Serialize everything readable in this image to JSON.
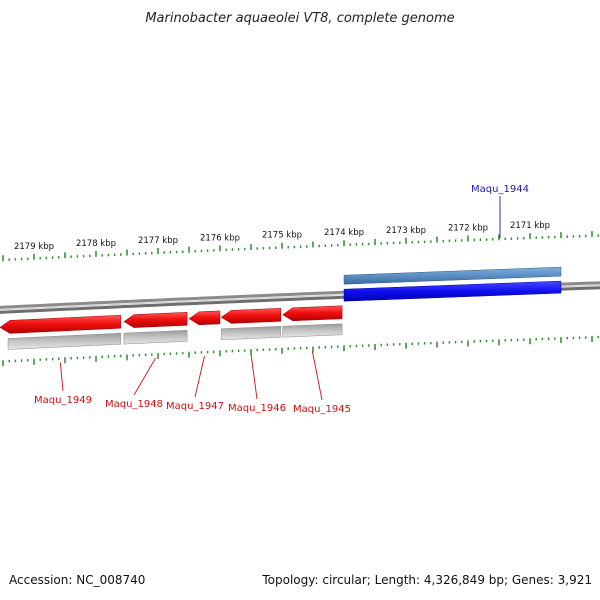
{
  "title": "Marinobacter aquaeolei VT8, complete genome",
  "footer": {
    "accession": "Accession: NC_008740",
    "summary": "Topology: circular; Length: 4,326,849 bp; Genes: 3,921"
  },
  "colors": {
    "forward_gene": "#1010f0",
    "forward_gene_alt": "#5b8fc4",
    "reverse_gene": "#f01010",
    "reverse_neighbor": "#b8b8b8",
    "tick": "#2e8b2e",
    "backbone": "#8a8a8a",
    "forward_label": "#1a1aa8",
    "reverse_label": "#cc1111"
  },
  "chart_data": {
    "type": "genome_map",
    "view": "linear_zoom",
    "units": "kbp",
    "tick_labels": [
      {
        "text": "2179 kbp",
        "kbp": 2179
      },
      {
        "text": "2178 kbp",
        "kbp": 2178
      },
      {
        "text": "2177 kbp",
        "kbp": 2177
      },
      {
        "text": "2176 kbp",
        "kbp": 2176
      },
      {
        "text": "2175 kbp",
        "kbp": 2175
      },
      {
        "text": "2174 kbp",
        "kbp": 2174
      },
      {
        "text": "2173 kbp",
        "kbp": 2173
      },
      {
        "text": "2172 kbp",
        "kbp": 2172
      },
      {
        "text": "2171 kbp",
        "kbp": 2171
      }
    ],
    "genes": [
      {
        "name": "Maqu_1944",
        "strand": "+",
        "start_kbp": 2170.5,
        "end_kbp": 2174.0
      },
      {
        "name": "Maqu_1945",
        "strand": "-",
        "start_kbp": 2174.03,
        "end_kbp": 2174.99
      },
      {
        "name": "Maqu_1946",
        "strand": "-",
        "start_kbp": 2175.02,
        "end_kbp": 2175.98
      },
      {
        "name": "Maqu_1947",
        "strand": "-",
        "start_kbp": 2176.0,
        "end_kbp": 2176.5
      },
      {
        "name": "Maqu_1948",
        "strand": "-",
        "start_kbp": 2176.53,
        "end_kbp": 2177.55
      },
      {
        "name": "Maqu_1949",
        "strand": "-",
        "start_kbp": 2177.6,
        "end_kbp": 2179.55
      }
    ]
  }
}
